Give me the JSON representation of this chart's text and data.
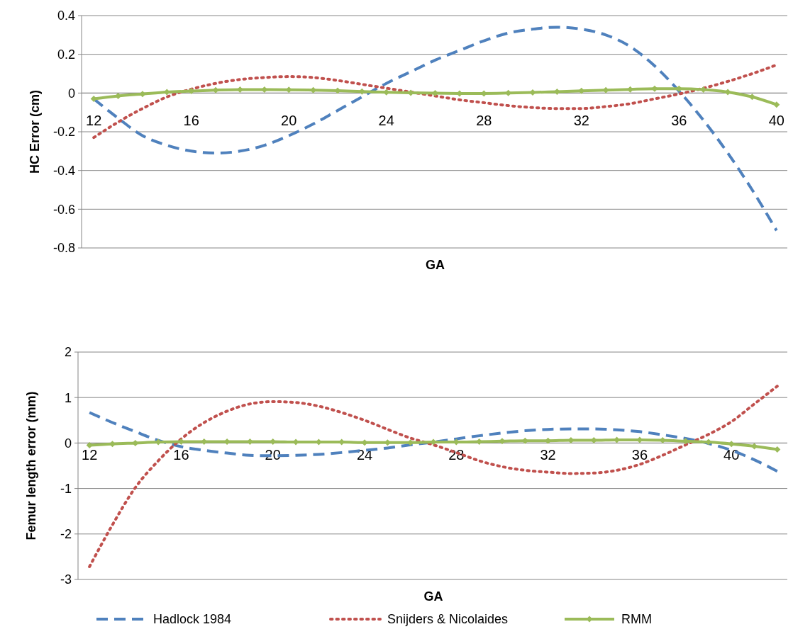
{
  "chart_data": [
    {
      "type": "line",
      "xlabel": "GA",
      "ylabel": "HC Error (cm)",
      "categories": [
        "12",
        null,
        null,
        null,
        "16",
        null,
        null,
        null,
        "20",
        null,
        null,
        null,
        "24",
        null,
        null,
        null,
        "28",
        null,
        null,
        null,
        "32",
        null,
        null,
        null,
        "36",
        null,
        null,
        null,
        "40"
      ],
      "ylim": [
        -0.8,
        0.4
      ],
      "yticks": [
        -0.8,
        -0.6,
        -0.4,
        -0.2,
        0,
        0.2,
        0.4
      ],
      "grid": "y",
      "legend": false,
      "series": [
        {
          "color": "#4f81bd",
          "line_style": "dashed",
          "marker": "none",
          "values": [
            -0.03,
            -0.13,
            -0.22,
            -0.27,
            -0.3,
            -0.31,
            -0.3,
            -0.27,
            -0.22,
            -0.16,
            -0.09,
            -0.02,
            0.05,
            0.11,
            0.17,
            0.22,
            0.27,
            0.31,
            0.33,
            0.34,
            0.33,
            0.3,
            0.24,
            0.14,
            0.01,
            -0.14,
            -0.31,
            -0.5,
            -0.71
          ]
        },
        {
          "color": "#c0504d",
          "line_style": "dotted",
          "marker": "none",
          "values": [
            -0.23,
            -0.15,
            -0.08,
            -0.02,
            0.02,
            0.05,
            0.07,
            0.08,
            0.085,
            0.08,
            0.065,
            0.045,
            0.025,
            0.005,
            -0.015,
            -0.035,
            -0.05,
            -0.065,
            -0.075,
            -0.08,
            -0.08,
            -0.07,
            -0.055,
            -0.03,
            -0.005,
            0.025,
            0.06,
            0.1,
            0.145
          ]
        },
        {
          "color": "#9bbb59",
          "line_style": "solid",
          "marker": "diamond",
          "values": [
            -0.03,
            -0.015,
            -0.005,
            0.005,
            0.01,
            0.015,
            0.018,
            0.018,
            0.017,
            0.015,
            0.012,
            0.008,
            0.004,
            0.001,
            -0.001,
            -0.002,
            -0.002,
            0,
            0.003,
            0.007,
            0.011,
            0.015,
            0.019,
            0.022,
            0.022,
            0.018,
            0.005,
            -0.02,
            -0.06
          ]
        }
      ]
    },
    {
      "type": "line",
      "xlabel": "GA",
      "ylabel": "Femur length error (mm)",
      "categories": [
        "12",
        null,
        null,
        null,
        "16",
        null,
        null,
        null,
        "20",
        null,
        null,
        null,
        "24",
        null,
        null,
        null,
        "28",
        null,
        null,
        null,
        "32",
        null,
        null,
        null,
        "36",
        null,
        null,
        null,
        "40",
        null,
        null
      ],
      "ylim": [
        -3,
        2
      ],
      "yticks": [
        -3,
        -2,
        -1,
        0,
        1,
        2
      ],
      "grid": "y",
      "legend": "bottom",
      "series": [
        {
          "name": "Hadlock 1984",
          "color": "#4f81bd",
          "line_style": "dashed",
          "marker": "none",
          "values": [
            0.67,
            0.45,
            0.25,
            0.06,
            -0.08,
            -0.16,
            -0.22,
            -0.27,
            -0.28,
            -0.27,
            -0.25,
            -0.21,
            -0.16,
            -0.11,
            -0.04,
            0.02,
            0.09,
            0.16,
            0.22,
            0.27,
            0.3,
            0.31,
            0.31,
            0.29,
            0.25,
            0.18,
            0.1,
            -0.01,
            -0.16,
            -0.37,
            -0.62
          ]
        },
        {
          "name": "Snijders & Nicolaides",
          "color": "#c0504d",
          "line_style": "dotted",
          "marker": "none",
          "values": [
            -2.72,
            -1.8,
            -0.98,
            -0.39,
            0.09,
            0.45,
            0.7,
            0.86,
            0.91,
            0.89,
            0.81,
            0.67,
            0.5,
            0.3,
            0.11,
            -0.04,
            -0.21,
            -0.39,
            -0.52,
            -0.6,
            -0.64,
            -0.67,
            -0.66,
            -0.6,
            -0.47,
            -0.27,
            -0.04,
            0.19,
            0.47,
            0.86,
            1.25
          ]
        },
        {
          "name": "RMM",
          "color": "#9bbb59",
          "line_style": "solid",
          "marker": "diamond",
          "values": [
            -0.05,
            -0.02,
            0,
            0.02,
            0.03,
            0.03,
            0.03,
            0.03,
            0.03,
            0.02,
            0.02,
            0.02,
            0.01,
            0.01,
            0.01,
            0.02,
            0.02,
            0.03,
            0.04,
            0.05,
            0.05,
            0.06,
            0.06,
            0.07,
            0.07,
            0.06,
            0.04,
            0.02,
            -0.02,
            -0.07,
            -0.14
          ]
        }
      ]
    }
  ]
}
